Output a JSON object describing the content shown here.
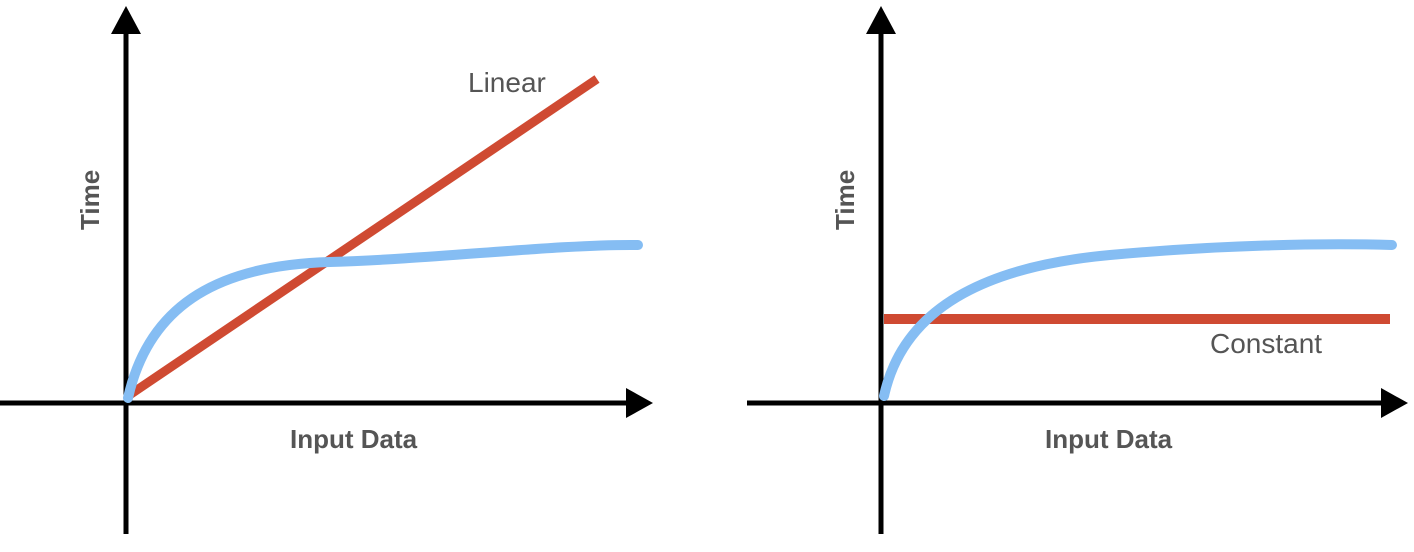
{
  "colors": {
    "axis": "#000000",
    "highlight_curve": "#85BDF3",
    "reference_line": "#CF4A32",
    "label_text": "#555555"
  },
  "panels": [
    {
      "y_axis_label": "Time",
      "x_axis_label": "Input Data",
      "reference_line_label": "Linear"
    },
    {
      "y_axis_label": "Time",
      "x_axis_label": "Input Data",
      "reference_line_label": "Constant"
    }
  ]
}
